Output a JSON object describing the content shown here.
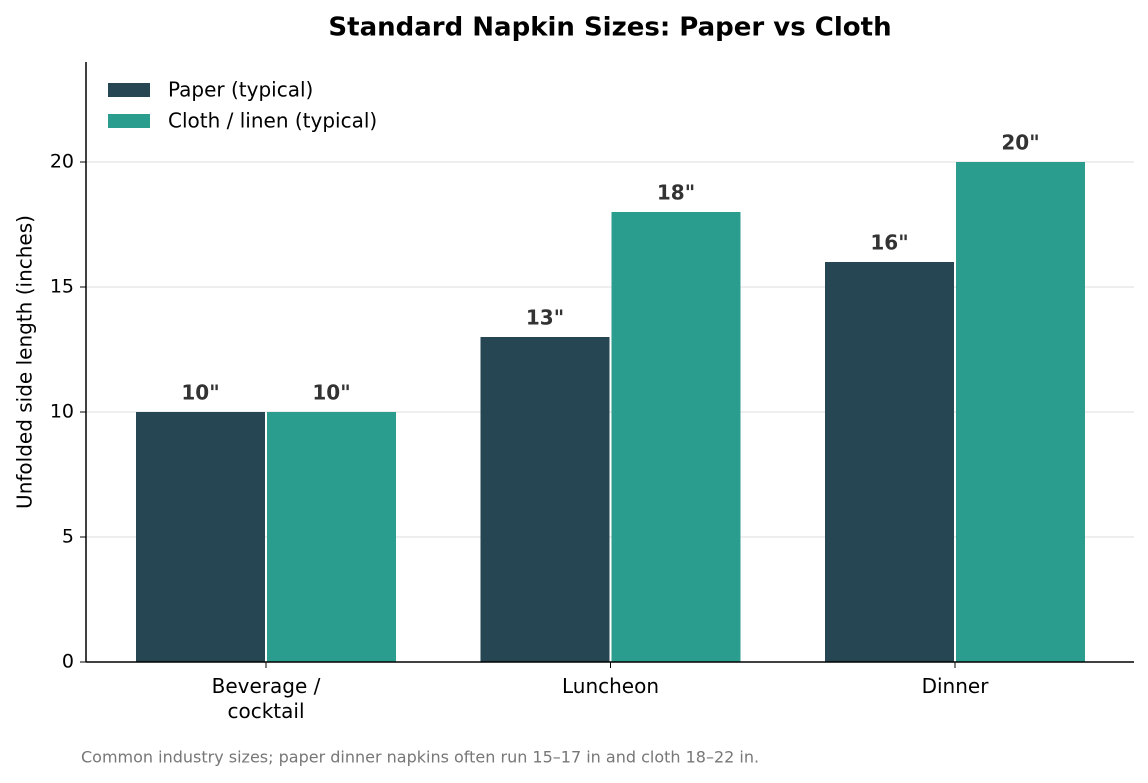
{
  "chart_data": {
    "type": "bar",
    "title": "Standard Napkin Sizes: Paper vs Cloth",
    "ylabel": "Unfolded side length (inches)",
    "note": "Common industry sizes; paper dinner napkins often run 15–17 in and cloth 18–22 in.",
    "categories": [
      "Beverage /\ncocktail",
      "Luncheon",
      "Dinner"
    ],
    "series": [
      {
        "name": "Paper (typical)",
        "color": "#264653",
        "values": [
          10,
          13,
          16
        ],
        "value_labels": [
          "10\"",
          "13\"",
          "16\""
        ]
      },
      {
        "name": "Cloth / linen (typical)",
        "color": "#2a9d8f",
        "values": [
          10,
          18,
          20
        ],
        "value_labels": [
          "10\"",
          "18\"",
          "20\""
        ]
      }
    ],
    "ylim": [
      0,
      24
    ],
    "yticks": [
      0,
      5,
      10,
      15,
      20
    ],
    "grid": true,
    "legend": "upper left"
  }
}
